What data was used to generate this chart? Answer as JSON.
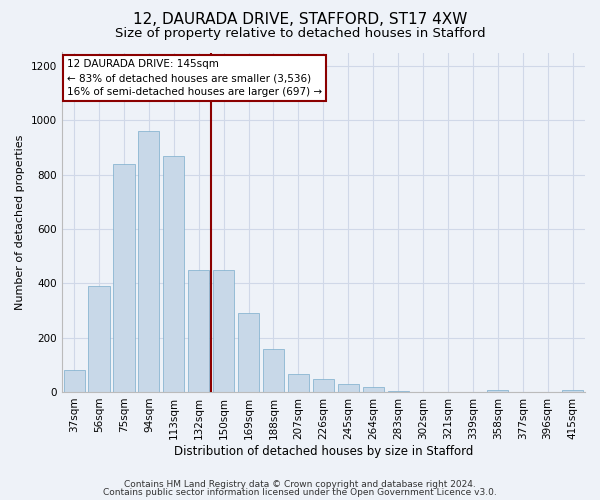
{
  "title1": "12, DAURADA DRIVE, STAFFORD, ST17 4XW",
  "title2": "Size of property relative to detached houses in Stafford",
  "xlabel": "Distribution of detached houses by size in Stafford",
  "ylabel": "Number of detached properties",
  "categories": [
    "37sqm",
    "56sqm",
    "75sqm",
    "94sqm",
    "113sqm",
    "132sqm",
    "150sqm",
    "169sqm",
    "188sqm",
    "207sqm",
    "226sqm",
    "245sqm",
    "264sqm",
    "283sqm",
    "302sqm",
    "321sqm",
    "339sqm",
    "358sqm",
    "377sqm",
    "396sqm",
    "415sqm"
  ],
  "values": [
    80,
    390,
    840,
    960,
    870,
    450,
    450,
    290,
    160,
    65,
    48,
    28,
    18,
    5,
    0,
    0,
    0,
    8,
    0,
    0,
    8
  ],
  "bar_color": "#c8d8e8",
  "bar_edge_color": "#7aadcc",
  "vline_x": 6,
  "vline_color": "#8b0000",
  "annotation_line1": "12 DAURADA DRIVE: 145sqm",
  "annotation_line2": "← 83% of detached houses are smaller (3,536)",
  "annotation_line3": "16% of semi-detached houses are larger (697) →",
  "annotation_box_color": "#ffffff",
  "annotation_box_edge": "#8b0000",
  "ylim": [
    0,
    1250
  ],
  "yticks": [
    0,
    200,
    400,
    600,
    800,
    1000,
    1200
  ],
  "grid_color": "#d0d8e8",
  "background_color": "#eef2f8",
  "footnote1": "Contains HM Land Registry data © Crown copyright and database right 2024.",
  "footnote2": "Contains public sector information licensed under the Open Government Licence v3.0.",
  "title1_fontsize": 11,
  "title2_fontsize": 9.5,
  "xlabel_fontsize": 8.5,
  "ylabel_fontsize": 8,
  "tick_fontsize": 7.5,
  "annotation_fontsize": 7.5,
  "footnote_fontsize": 6.5
}
